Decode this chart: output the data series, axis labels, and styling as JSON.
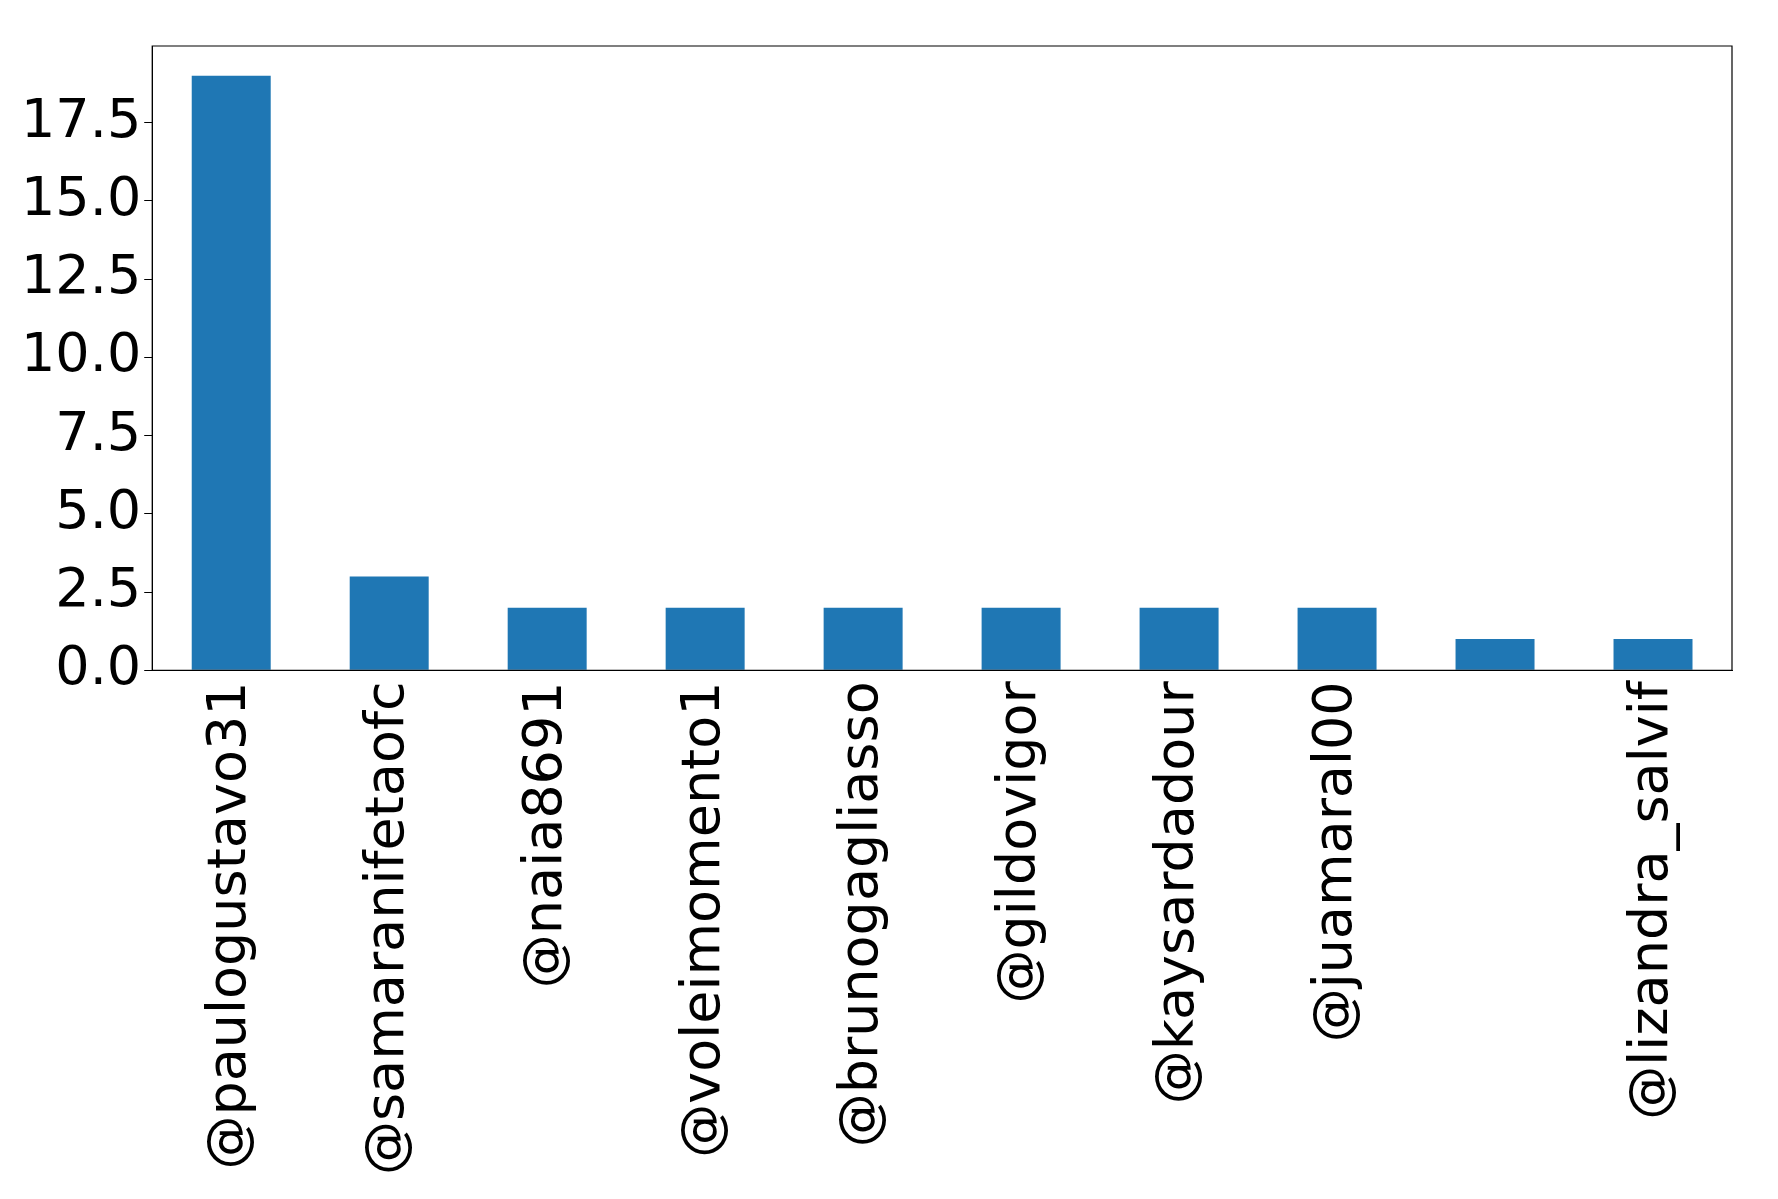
{
  "chart_data": {
    "type": "bar",
    "categories": [
      "@paulogustavo31",
      "@samaranifetaofc",
      "@naia8691",
      "@voleimomento1",
      "@brunogagliasso",
      "@gildovigor",
      "@kaysardadour",
      "@juamaral00",
      null,
      "@lizandra_salvif"
    ],
    "values": [
      19,
      3,
      2,
      2,
      2,
      2,
      2,
      2,
      1,
      1
    ],
    "color": "#1f77b4",
    "ylim": [
      0,
      19.95
    ],
    "yticks": [
      {
        "value": 0,
        "label": "0.0"
      },
      2.5,
      {
        "value": 5,
        "label": "5.0"
      },
      7.5,
      {
        "value": 10,
        "label": "10.0"
      },
      12.5,
      {
        "value": 15,
        "label": "15.0"
      },
      17.5
    ],
    "grid": false,
    "legend": false
  }
}
